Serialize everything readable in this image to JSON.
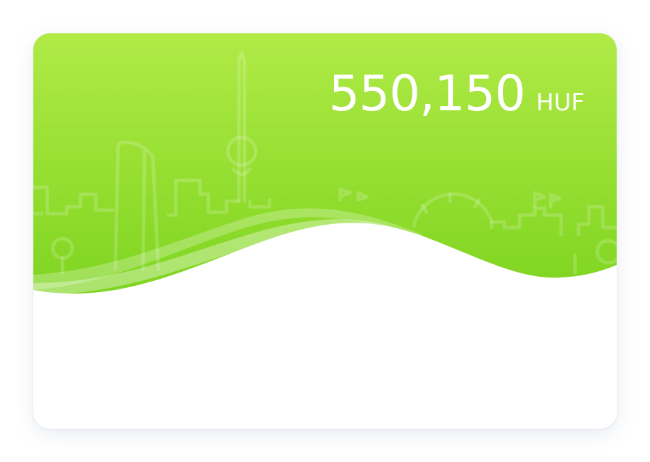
{
  "card": {
    "balance_amount": "550,150",
    "currency": "HUF",
    "colors": {
      "gradient_top": "#b0ea46",
      "gradient_bottom": "#79d21c",
      "text": "#ffffff",
      "wave_highlight": "#e6f7cf"
    },
    "illustration": "city-skyline-icon"
  }
}
